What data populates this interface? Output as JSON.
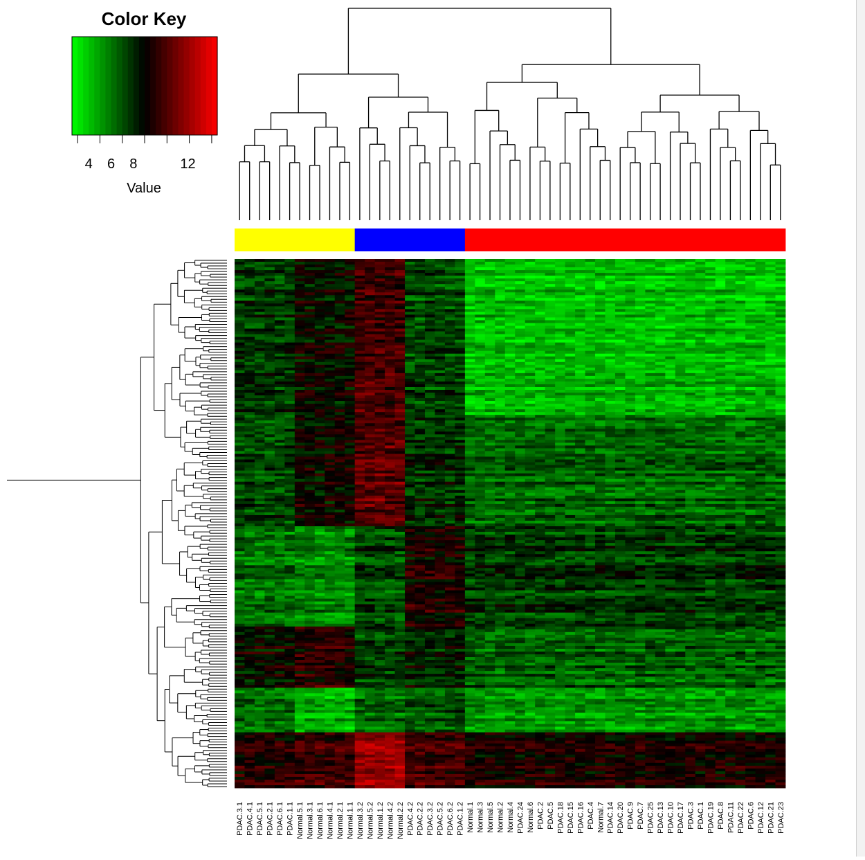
{
  "chart_data": {
    "type": "heatmap",
    "color_key": {
      "title": "Color Key",
      "xlabel": "Value",
      "ticks": [
        4,
        6,
        8,
        12
      ],
      "range": [
        2.5,
        15.5
      ],
      "low_color": "#00ff00",
      "mid_color": "#000000",
      "high_color": "#ff0000"
    },
    "group_colors": {
      "yellow": "#ffff00",
      "blue": "#0000ff",
      "red": "#ff0000"
    },
    "column_groups": [
      {
        "color": "yellow",
        "columns": 12
      },
      {
        "color": "blue",
        "columns": 11
      },
      {
        "color": "red",
        "columns": 32
      }
    ],
    "columns": [
      "PDAC.3.1",
      "PDAC.4.1",
      "PDAC.5.1",
      "PDAC.2.1",
      "PDAC.6.1",
      "PDAC.1.1",
      "Normal.5.1",
      "Normal.3.1",
      "Normal.6.1",
      "Normal.4.1",
      "Normal.2.1",
      "Normal.1.1",
      "Normal.3.2",
      "Normal.5.2",
      "Normal.1.2",
      "Normal.4.2",
      "Normal.2.2",
      "PDAC.4.2",
      "PDAC.2.2",
      "PDAC.3.2",
      "PDAC.5.2",
      "PDAC.6.2",
      "PDAC.1.2",
      "Normal.1",
      "Normal.3",
      "Normal.5",
      "Normal.2",
      "Normal.4",
      "PDAC.24",
      "Normal.6",
      "PDAC.2",
      "PDAC.5",
      "PDAC.18",
      "PDAC.15",
      "PDAC.16",
      "PDAC.4",
      "Normal.7",
      "PDAC.14",
      "PDAC.20",
      "PDAC.9",
      "PDAC.7",
      "PDAC.25",
      "PDAC.13",
      "PDAC.10",
      "PDAC.17",
      "PDAC.3",
      "PDAC.1",
      "PDAC.19",
      "PDAC.8",
      "PDAC.11",
      "PDAC.22",
      "PDAC.6",
      "PDAC.12",
      "PDAC.21",
      "PDAC.23"
    ],
    "row_blocks": [
      {
        "rows": 56,
        "values": [
          7.6,
          8.8,
          10.6,
          7.2,
          4.2
        ]
      },
      {
        "rows": 40,
        "values": [
          7.4,
          9.2,
          11.4,
          8.0,
          6.6
        ]
      },
      {
        "rows": 36,
        "values": [
          6.2,
          5.6,
          7.2,
          9.6,
          7.6
        ]
      },
      {
        "rows": 22,
        "values": [
          9.0,
          10.0,
          7.6,
          8.4,
          6.6
        ]
      },
      {
        "rows": 16,
        "values": [
          6.4,
          4.8,
          6.6,
          7.2,
          5.4
        ]
      },
      {
        "rows": 20,
        "values": [
          10.0,
          10.6,
          13.0,
          10.8,
          9.8
        ]
      }
    ],
    "has_row_dendrogram": true,
    "has_column_dendrogram": true
  }
}
